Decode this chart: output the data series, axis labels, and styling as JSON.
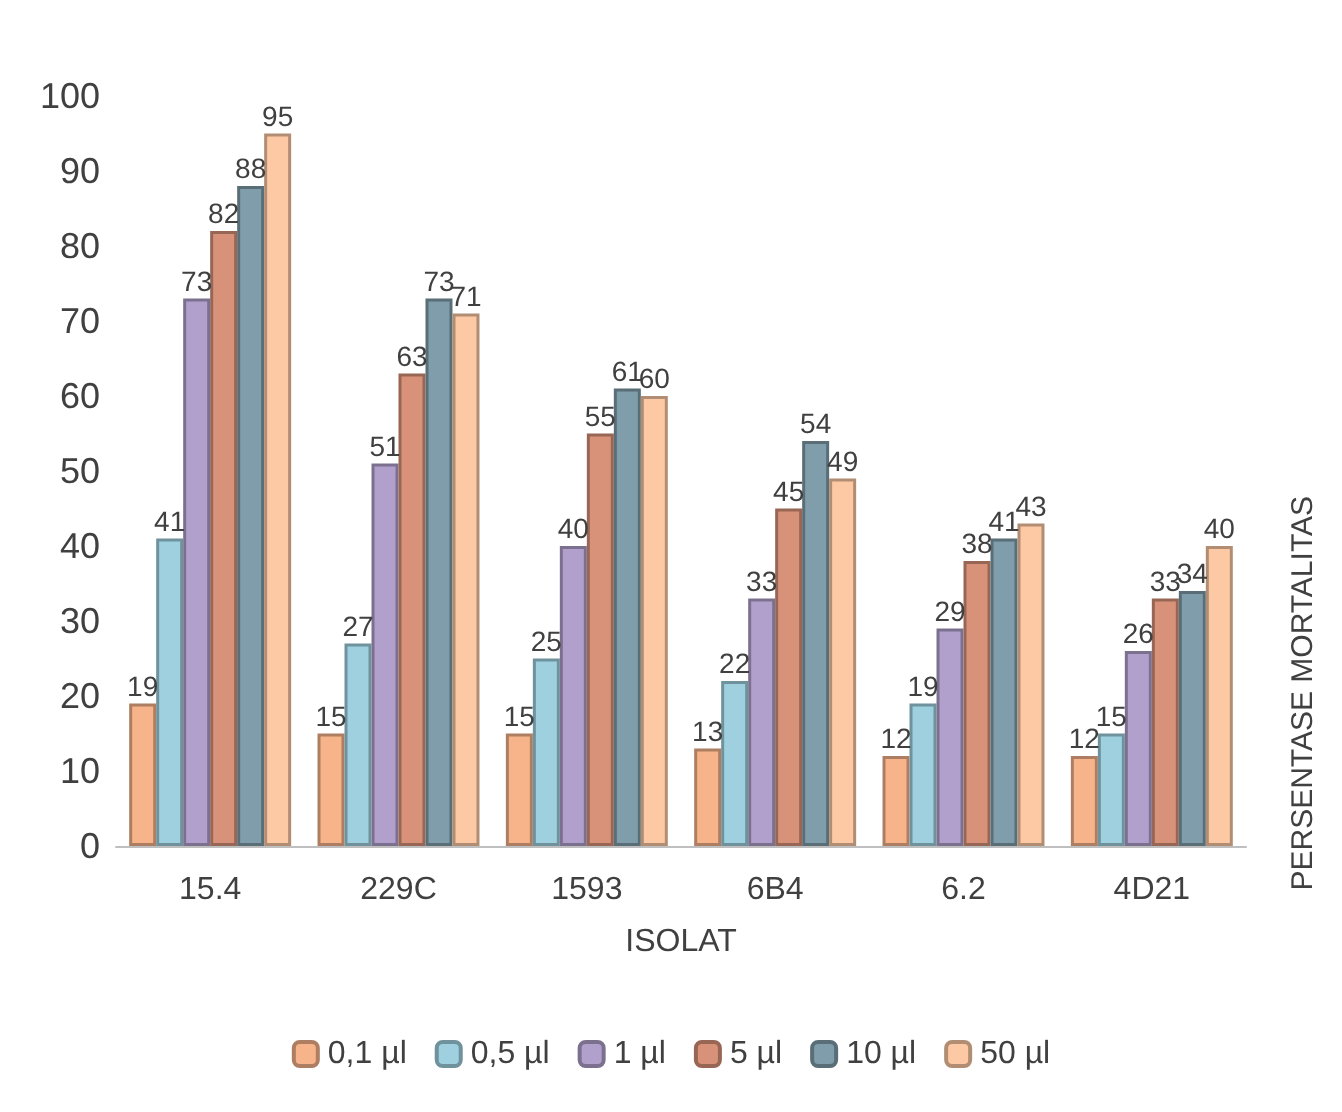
{
  "chart_data": {
    "type": "bar",
    "xlabel": "ISOLAT",
    "ylabel": "PERSENTASE MORTALITAS",
    "categories": [
      "15.4",
      "229C",
      "1593",
      "6B4",
      "6.2",
      "4D21"
    ],
    "series": [
      {
        "name": "0,1 µl",
        "color": "#f7b48a",
        "values": [
          19,
          15,
          15,
          13,
          12,
          12
        ]
      },
      {
        "name": "0,5 µl",
        "color": "#9fd0e0",
        "values": [
          41,
          27,
          25,
          22,
          19,
          15
        ]
      },
      {
        "name": "1 µl",
        "color": "#b1a0cc",
        "values": [
          73,
          51,
          40,
          33,
          29,
          26
        ]
      },
      {
        "name": "5 µl",
        "color": "#d9927a",
        "values": [
          82,
          63,
          55,
          45,
          38,
          33
        ]
      },
      {
        "name": "10 µl",
        "color": "#7f9daa",
        "values": [
          88,
          73,
          61,
          54,
          41,
          34
        ]
      },
      {
        "name": "50 µl",
        "color": "#fdc9a5",
        "values": [
          95,
          71,
          60,
          49,
          43,
          40
        ]
      }
    ],
    "ylim": [
      0,
      100
    ],
    "yticks": [
      0,
      10,
      20,
      30,
      40,
      50,
      60,
      70,
      80,
      90,
      100
    ],
    "grid": false,
    "legend": "bottom",
    "data_labels": true
  }
}
